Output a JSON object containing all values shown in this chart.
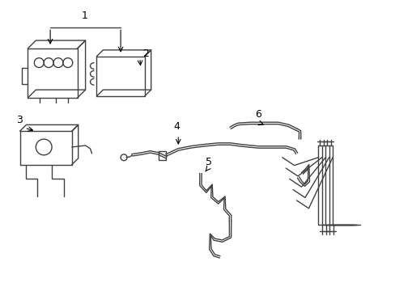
{
  "background_color": "#ffffff",
  "line_color": "#404040",
  "label_color": "#000000",
  "figsize": [
    4.89,
    3.6
  ],
  "dpi": 100,
  "lw": 1.0
}
